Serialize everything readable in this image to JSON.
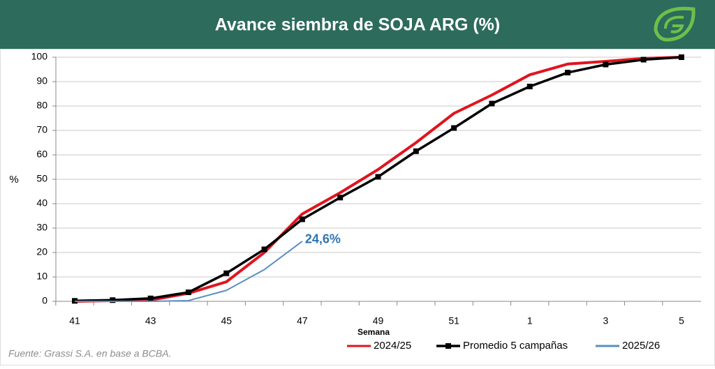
{
  "chart_data": {
    "type": "line",
    "title": "Avance siembra de SOJA ARG (%)",
    "ylabel": "%",
    "xlabel": "Semana",
    "source": "Fuente: Grassi S.A. en base a BCBA.",
    "categories": [
      41,
      null,
      43,
      null,
      45,
      null,
      47,
      null,
      49,
      null,
      51,
      null,
      1,
      null,
      3,
      null,
      5
    ],
    "series": [
      {
        "name": "2024/25",
        "color": "#e0141e",
        "marker": false,
        "values": [
          0,
          0.3,
          0.5,
          3.3,
          8,
          20,
          35.8,
          44.5,
          54,
          65,
          77,
          84.5,
          92.8,
          97.2,
          98.3,
          99.5,
          100
        ]
      },
      {
        "name": "Promedio 5 campañas",
        "color": "#000000",
        "marker": true,
        "values": [
          0.2,
          0.5,
          1.2,
          3.7,
          11.5,
          21.3,
          33.6,
          42.5,
          51,
          61.5,
          71,
          81,
          88,
          93.7,
          97,
          99,
          100
        ]
      },
      {
        "name": "2025/26",
        "color": "#5b8ec0",
        "marker": false,
        "values": [
          0,
          0,
          0,
          0.3,
          4.5,
          13,
          24.6,
          null,
          null,
          null,
          null,
          null,
          null,
          null,
          null,
          null,
          null
        ],
        "value_labels": [
          null,
          null,
          null,
          null,
          null,
          null,
          "24,6%",
          null,
          null,
          null,
          null,
          null,
          null,
          null,
          null,
          null,
          null
        ]
      }
    ],
    "ylim": [
      0,
      100
    ],
    "yticks": [
      0,
      10,
      20,
      30,
      40,
      50,
      60,
      70,
      80,
      90,
      100
    ],
    "grid": true,
    "legend": "bottom"
  }
}
